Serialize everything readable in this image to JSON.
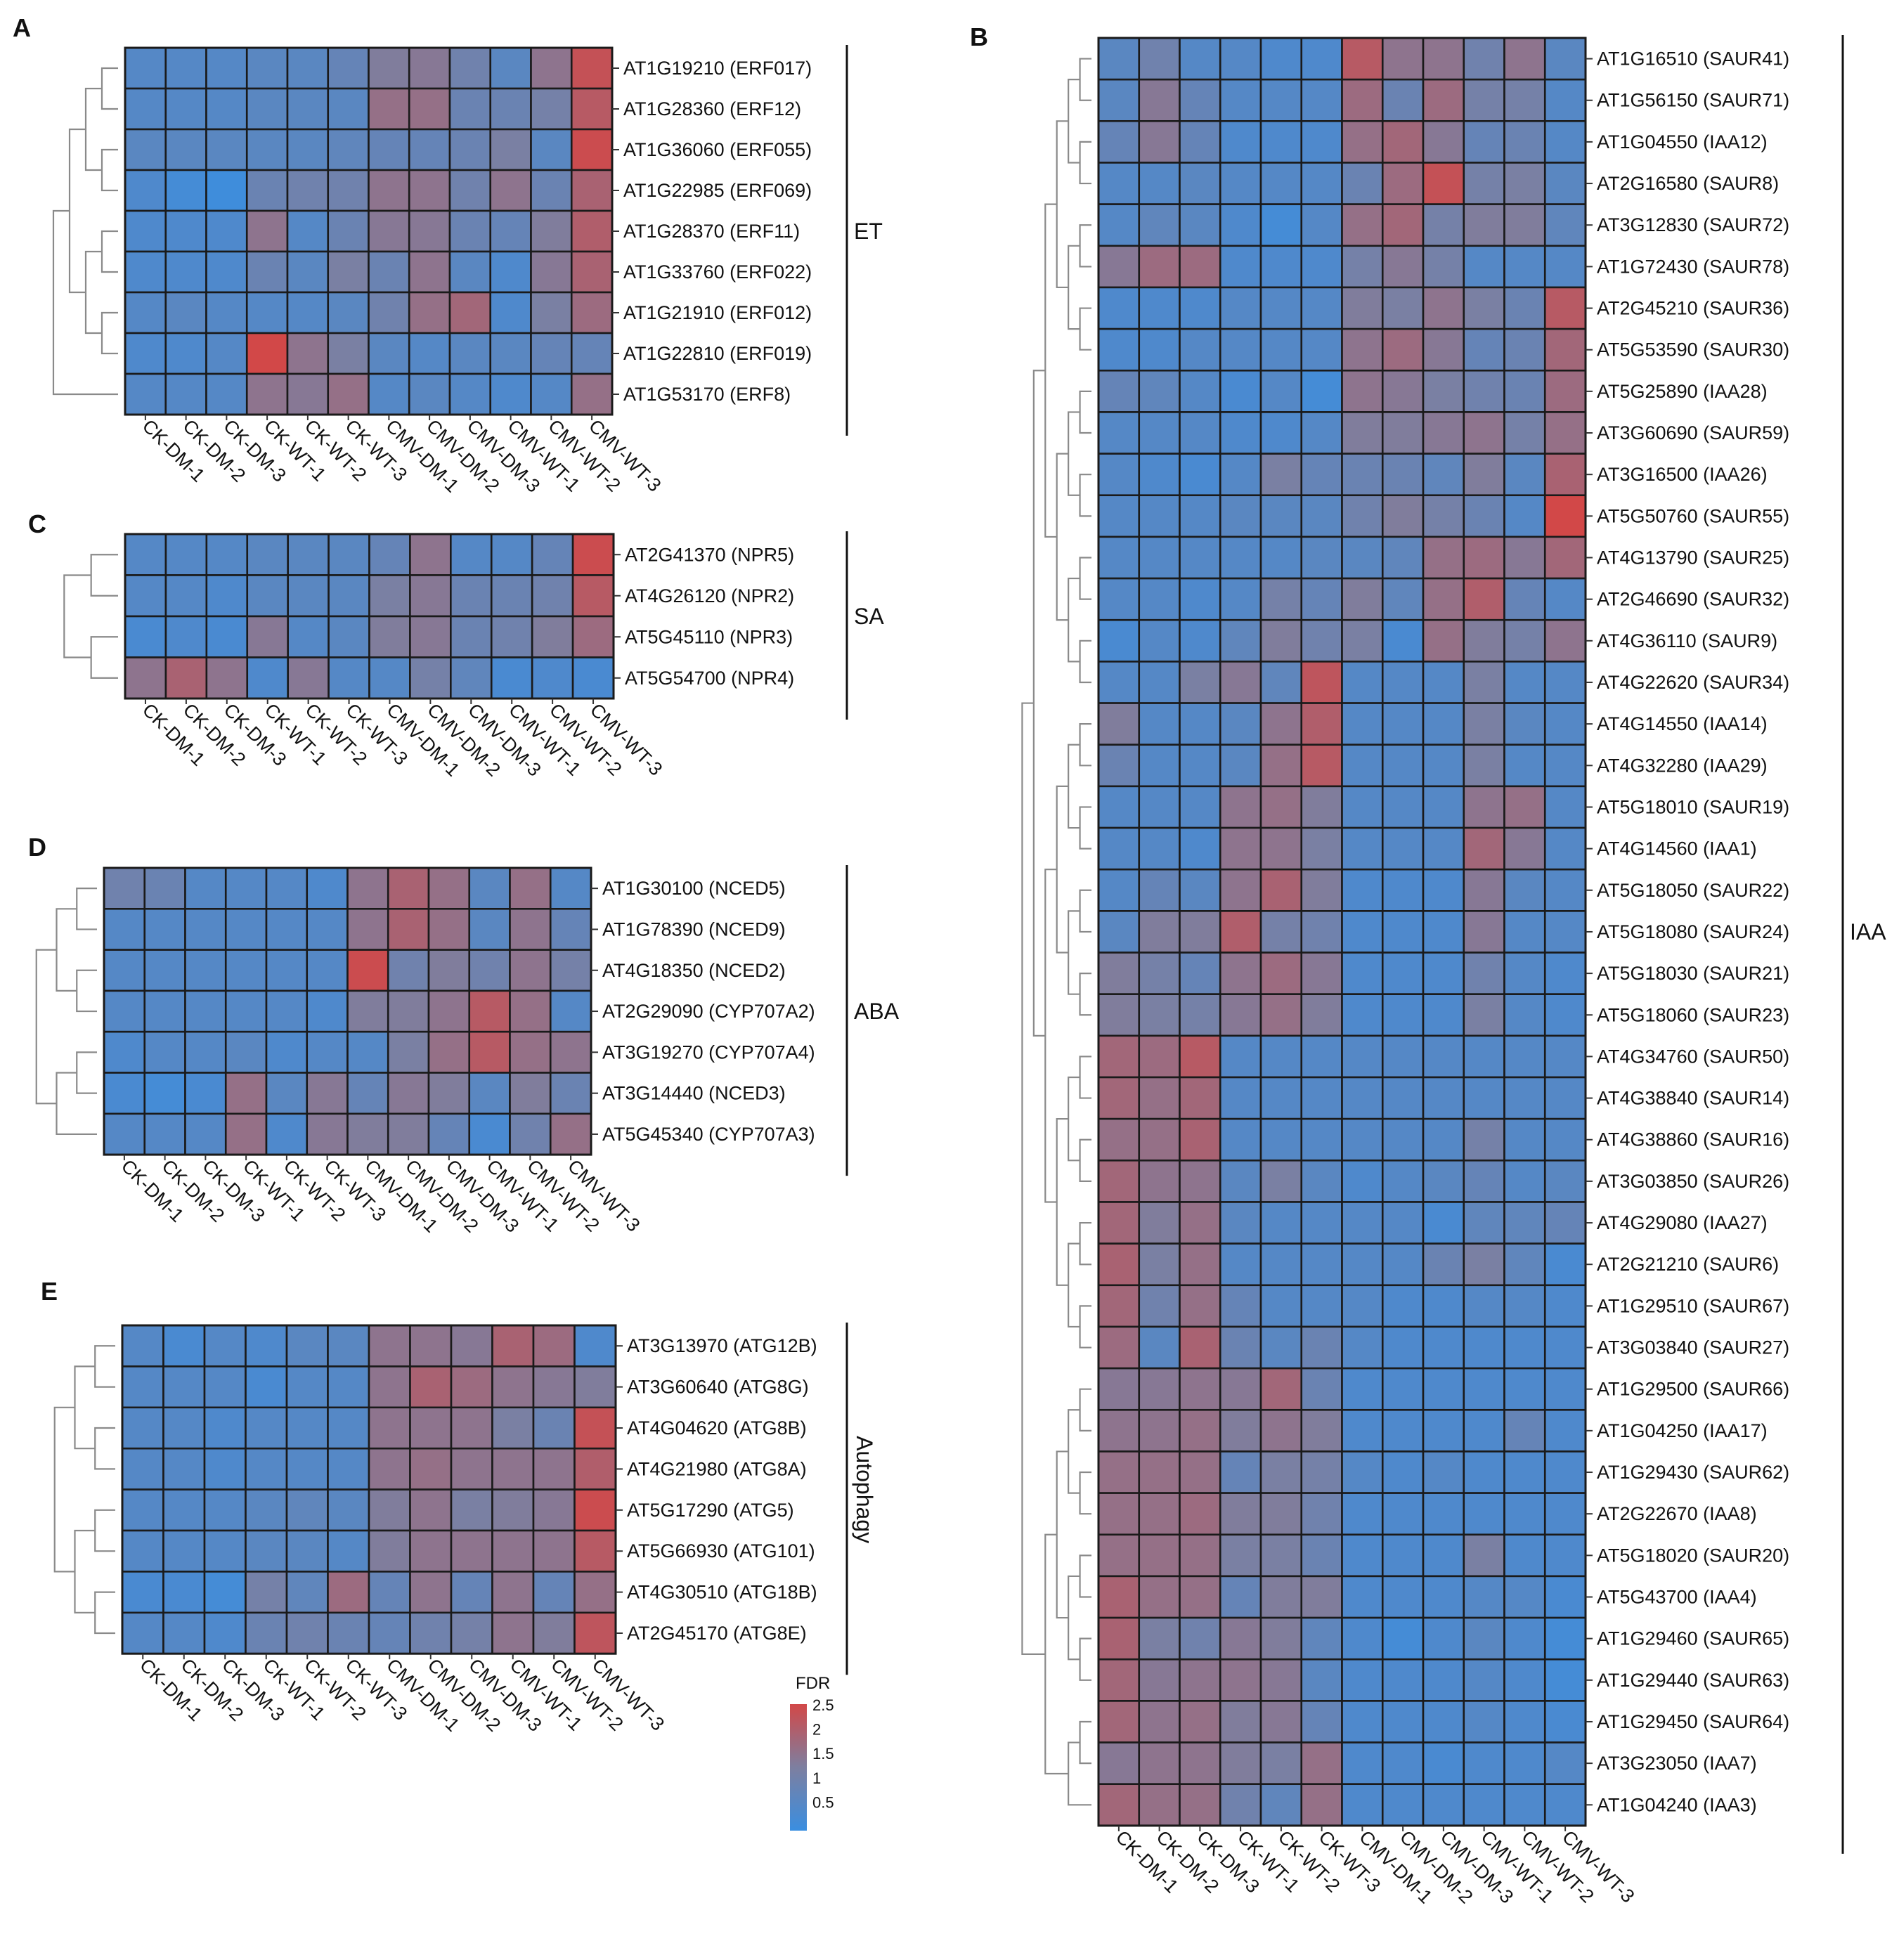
{
  "chart_data": [
    {
      "panel": "A",
      "type": "heatmap",
      "group_label": "ET",
      "columns": [
        "CK-DM-1",
        "CK-DM-2",
        "CK-DM-3",
        "CK-WT-1",
        "CK-WT-2",
        "CK-WT-3",
        "CMV-DM-1",
        "CMV-DM-2",
        "CMV-DM-3",
        "CMV-WT-1",
        "CMV-WT-2",
        "CMV-WT-3"
      ],
      "rows": [
        "AT1G19210 (ERF017)",
        "AT1G28360 (ERF12)",
        "AT1G36060 (ERF055)",
        "AT1G22985 (ERF069)",
        "AT1G28370 (ERF11)",
        "AT1G33760 (ERF022)",
        "AT1G21910 (ERF012)",
        "AT1G22810 (ERF019)",
        "AT1G53170 (ERF8)"
      ],
      "values": [
        [
          0.5,
          0.5,
          0.5,
          0.6,
          0.6,
          0.8,
          1.3,
          1.4,
          1.0,
          0.6,
          1.5,
          2.3
        ],
        [
          0.5,
          0.5,
          0.5,
          0.6,
          0.6,
          0.6,
          1.6,
          1.6,
          0.9,
          0.9,
          1.1,
          2.1
        ],
        [
          0.6,
          0.6,
          0.6,
          0.6,
          0.6,
          0.7,
          0.8,
          0.8,
          0.9,
          1.2,
          0.6,
          2.4
        ],
        [
          0.4,
          0.2,
          0.1,
          0.9,
          1.0,
          1.0,
          1.5,
          1.5,
          1.0,
          1.5,
          0.9,
          1.9
        ],
        [
          0.4,
          0.4,
          0.4,
          1.5,
          0.5,
          0.9,
          1.4,
          1.4,
          0.9,
          0.8,
          1.3,
          2.0
        ],
        [
          0.4,
          0.4,
          0.4,
          0.9,
          0.6,
          1.2,
          0.9,
          1.5,
          0.6,
          0.4,
          1.4,
          1.9
        ],
        [
          0.5,
          0.6,
          0.5,
          0.5,
          0.5,
          0.6,
          1.0,
          1.6,
          1.8,
          0.4,
          1.2,
          1.7
        ],
        [
          0.4,
          0.4,
          0.5,
          2.5,
          1.5,
          1.2,
          0.6,
          0.5,
          0.6,
          0.6,
          0.8,
          0.8
        ],
        [
          0.5,
          0.5,
          0.5,
          1.5,
          1.4,
          1.6,
          0.5,
          0.6,
          0.5,
          0.4,
          0.5,
          1.6
        ]
      ],
      "dendrogram": {
        "height": [
          0,
          0,
          0,
          0,
          0,
          0,
          0,
          0,
          0,
          1,
          1,
          2,
          0,
          0,
          3,
          0,
          4,
          3,
          5,
          4,
          5,
          1,
          1,
          1,
          2,
          2,
          6,
          7,
          6,
          7,
          8,
          8,
          8,
          8
        ],
        "scale": [
          0,
          0
        ]
      }
    },
    {
      "panel": "B",
      "type": "heatmap",
      "group_label": "IAA",
      "columns": [
        "CK-DM-1",
        "CK-DM-2",
        "CK-DM-3",
        "CK-WT-1",
        "CK-WT-2",
        "CK-WT-3",
        "CMV-DM-1",
        "CMV-DM-2",
        "CMV-DM-3",
        "CMV-WT-1",
        "CMV-WT-2",
        "CMV-WT-3"
      ],
      "rows": [
        "AT1G16510 (SAUR41)",
        "AT1G56150 (SAUR71)",
        "AT1G04550 (IAA12)",
        "AT2G16580 (SAUR8)",
        "AT3G12830 (SAUR72)",
        "AT1G72430 (SAUR78)",
        "AT2G45210 (SAUR36)",
        "AT5G53590 (SAUR30)",
        "AT5G25890 (IAA28)",
        "AT3G60690 (SAUR59)",
        "AT3G16500 (IAA26)",
        "AT5G50760 (SAUR55)",
        "AT4G13790 (SAUR25)",
        "AT2G46690 (SAUR32)",
        "AT4G36110 (SAUR9)",
        "AT4G22620 (SAUR34)",
        "AT4G14550 (IAA14)",
        "AT4G32280 (IAA29)",
        "AT5G18010 (SAUR19)",
        "AT4G14560 (IAA1)",
        "AT5G18050 (SAUR22)",
        "AT5G18080 (SAUR24)",
        "AT5G18030 (SAUR21)",
        "AT5G18060 (SAUR23)",
        "AT4G34760 (SAUR50)",
        "AT4G38840 (SAUR14)",
        "AT4G38860 (SAUR16)",
        "AT3G03850 (SAUR26)",
        "AT4G29080 (IAA27)",
        "AT2G21210 (SAUR6)",
        "AT1G29510 (SAUR67)",
        "AT3G03840 (SAUR27)",
        "AT1G29500 (SAUR66)",
        "AT1G04250 (IAA17)",
        "AT1G29430 (SAUR62)",
        "AT2G22670 (IAA8)",
        "AT5G18020 (SAUR20)",
        "AT5G43700 (IAA4)",
        "AT1G29460 (SAUR65)",
        "AT1G29440 (SAUR63)",
        "AT1G29450 (SAUR64)",
        "AT3G23050 (IAA7)",
        "AT1G04240 (IAA3)"
      ],
      "values": [
        [
          0.6,
          1.0,
          0.5,
          0.5,
          0.4,
          0.4,
          2.1,
          1.5,
          1.5,
          1.0,
          1.5,
          0.6
        ],
        [
          0.6,
          1.4,
          0.8,
          0.5,
          0.5,
          0.5,
          1.7,
          0.9,
          1.7,
          1.1,
          1.1,
          0.5
        ],
        [
          0.8,
          1.4,
          0.8,
          0.4,
          0.4,
          0.4,
          1.6,
          1.8,
          1.4,
          0.8,
          0.9,
          0.5
        ],
        [
          0.5,
          0.5,
          0.6,
          0.5,
          0.5,
          0.5,
          0.9,
          1.7,
          2.3,
          1.1,
          1.2,
          0.6
        ],
        [
          0.5,
          0.7,
          0.6,
          0.4,
          0.2,
          0.5,
          1.6,
          1.8,
          1.1,
          1.3,
          1.3,
          0.7
        ],
        [
          1.4,
          1.7,
          1.7,
          0.4,
          0.4,
          0.4,
          1.1,
          1.4,
          1.1,
          0.5,
          0.5,
          0.5
        ],
        [
          0.4,
          0.4,
          0.4,
          0.5,
          0.5,
          0.5,
          1.3,
          1.2,
          1.5,
          1.2,
          0.9,
          2.1
        ],
        [
          0.4,
          0.4,
          0.5,
          0.5,
          0.5,
          0.5,
          1.5,
          1.7,
          1.4,
          0.8,
          0.9,
          1.8
        ],
        [
          0.8,
          0.7,
          0.5,
          0.3,
          0.5,
          0.2,
          1.5,
          1.4,
          1.2,
          1.0,
          0.9,
          1.7
        ],
        [
          0.5,
          0.5,
          0.5,
          0.4,
          0.4,
          0.5,
          1.3,
          1.3,
          1.4,
          1.5,
          1.1,
          1.6
        ],
        [
          0.5,
          0.4,
          0.3,
          0.5,
          1.2,
          0.8,
          0.9,
          0.9,
          0.7,
          1.3,
          0.6,
          1.9
        ],
        [
          0.5,
          0.5,
          0.5,
          0.6,
          0.6,
          0.6,
          1.0,
          1.3,
          1.1,
          0.9,
          0.5,
          2.5
        ],
        [
          0.5,
          0.5,
          0.5,
          0.5,
          0.5,
          0.6,
          0.6,
          0.7,
          1.6,
          1.7,
          1.4,
          1.8
        ],
        [
          0.5,
          0.5,
          0.4,
          0.5,
          1.1,
          0.8,
          1.3,
          0.7,
          1.6,
          2.0,
          0.8,
          0.5
        ],
        [
          0.3,
          0.5,
          0.4,
          0.7,
          1.3,
          1.0,
          1.2,
          0.3,
          1.6,
          1.3,
          1.1,
          1.5
        ],
        [
          0.5,
          0.5,
          1.2,
          1.4,
          0.7,
          2.2,
          0.5,
          0.5,
          0.5,
          1.2,
          0.5,
          0.5
        ],
        [
          1.3,
          0.5,
          0.5,
          0.6,
          1.5,
          2.0,
          0.5,
          0.5,
          0.5,
          1.2,
          0.6,
          0.5
        ],
        [
          0.9,
          0.5,
          0.5,
          0.6,
          1.6,
          2.1,
          0.5,
          0.5,
          0.5,
          1.2,
          0.5,
          0.5
        ],
        [
          0.5,
          0.5,
          0.5,
          1.5,
          1.6,
          1.3,
          0.5,
          0.5,
          0.5,
          1.5,
          1.6,
          0.5
        ],
        [
          0.5,
          0.5,
          0.4,
          1.5,
          1.5,
          1.2,
          0.5,
          0.5,
          0.5,
          1.8,
          1.4,
          0.5
        ],
        [
          0.5,
          0.8,
          0.6,
          1.5,
          1.9,
          1.3,
          0.4,
          0.4,
          0.4,
          1.4,
          0.6,
          0.5
        ],
        [
          0.6,
          1.3,
          1.3,
          2.0,
          1.1,
          1.0,
          0.4,
          0.4,
          0.4,
          1.4,
          0.5,
          0.5
        ],
        [
          1.3,
          1.1,
          0.8,
          1.5,
          1.7,
          1.4,
          0.4,
          0.4,
          0.4,
          1.0,
          0.5,
          0.4
        ],
        [
          1.3,
          1.2,
          1.1,
          1.4,
          1.6,
          1.3,
          0.4,
          0.4,
          0.4,
          1.2,
          0.5,
          0.4
        ],
        [
          1.8,
          1.7,
          2.1,
          0.5,
          0.5,
          0.5,
          0.5,
          0.5,
          0.5,
          0.5,
          0.5,
          0.5
        ],
        [
          1.8,
          1.6,
          1.8,
          0.5,
          0.5,
          0.5,
          0.5,
          0.5,
          0.5,
          0.5,
          0.5,
          0.5
        ],
        [
          1.6,
          1.6,
          1.9,
          0.5,
          0.5,
          0.5,
          0.5,
          0.5,
          0.5,
          1.1,
          0.5,
          0.5
        ],
        [
          1.8,
          1.5,
          1.5,
          0.6,
          1.2,
          0.6,
          0.4,
          0.5,
          0.6,
          0.8,
          0.5,
          0.6
        ],
        [
          1.8,
          1.3,
          1.6,
          0.6,
          0.5,
          0.5,
          0.5,
          0.5,
          0.3,
          0.7,
          0.7,
          0.8
        ],
        [
          1.9,
          1.2,
          1.6,
          0.5,
          0.5,
          0.5,
          0.5,
          0.5,
          0.9,
          1.2,
          0.7,
          0.3
        ],
        [
          1.8,
          1.0,
          1.6,
          0.8,
          0.5,
          0.5,
          0.5,
          0.4,
          0.4,
          0.5,
          0.5,
          0.4
        ],
        [
          1.7,
          0.6,
          1.9,
          0.9,
          0.6,
          0.9,
          0.5,
          0.4,
          0.4,
          0.4,
          0.4,
          0.4
        ],
        [
          1.4,
          1.4,
          1.5,
          1.4,
          1.8,
          0.9,
          0.4,
          0.4,
          0.4,
          0.4,
          0.4,
          0.4
        ],
        [
          1.5,
          1.5,
          1.6,
          1.3,
          1.5,
          1.3,
          0.4,
          0.4,
          0.4,
          0.4,
          0.8,
          0.4
        ],
        [
          1.6,
          1.6,
          1.6,
          0.8,
          1.2,
          1.1,
          0.5,
          0.4,
          0.5,
          0.4,
          0.4,
          0.4
        ],
        [
          1.6,
          1.6,
          1.7,
          1.3,
          1.3,
          1.0,
          0.4,
          0.4,
          0.4,
          0.4,
          0.4,
          0.4
        ],
        [
          1.6,
          1.6,
          1.6,
          1.2,
          1.2,
          0.9,
          0.4,
          0.4,
          0.4,
          1.2,
          0.4,
          0.4
        ],
        [
          1.9,
          1.6,
          1.6,
          0.8,
          1.3,
          1.3,
          0.4,
          0.4,
          0.4,
          0.5,
          0.5,
          0.3
        ],
        [
          1.9,
          1.2,
          1.0,
          1.4,
          1.3,
          0.7,
          0.4,
          0.2,
          0.4,
          0.6,
          0.4,
          0.2
        ],
        [
          1.8,
          1.4,
          1.5,
          1.5,
          1.4,
          0.6,
          0.4,
          0.4,
          0.4,
          0.5,
          0.4,
          0.2
        ],
        [
          1.8,
          1.5,
          1.6,
          1.3,
          1.4,
          0.8,
          0.4,
          0.4,
          0.4,
          0.5,
          0.4,
          0.3
        ],
        [
          1.4,
          1.5,
          1.5,
          1.3,
          1.2,
          1.6,
          0.4,
          0.4,
          0.3,
          0.4,
          0.4,
          0.5
        ],
        [
          1.8,
          1.6,
          1.6,
          1.0,
          0.7,
          1.6,
          0.4,
          0.4,
          0.4,
          0.4,
          0.4,
          0.4
        ]
      ]
    },
    {
      "panel": "C",
      "type": "heatmap",
      "group_label": "SA",
      "columns": [
        "CK-DM-1",
        "CK-DM-2",
        "CK-DM-3",
        "CK-WT-1",
        "CK-WT-2",
        "CK-WT-3",
        "CMV-DM-1",
        "CMV-DM-2",
        "CMV-DM-3",
        "CMV-WT-1",
        "CMV-WT-2",
        "CMV-WT-3"
      ],
      "rows": [
        "AT2G41370 (NPR5)",
        "AT4G26120 (NPR2)",
        "AT5G45110 (NPR3)",
        "AT5G54700 (NPR4)"
      ],
      "values": [
        [
          0.5,
          0.5,
          0.5,
          0.6,
          0.6,
          0.6,
          0.8,
          1.5,
          0.5,
          0.5,
          0.8,
          2.4
        ],
        [
          0.5,
          0.5,
          0.4,
          0.6,
          0.6,
          0.6,
          1.2,
          1.4,
          0.9,
          0.9,
          1.0,
          2.1
        ],
        [
          0.3,
          0.4,
          0.3,
          1.4,
          0.5,
          0.6,
          1.3,
          1.4,
          0.9,
          1.0,
          1.3,
          1.7
        ],
        [
          1.5,
          1.9,
          1.5,
          0.4,
          1.4,
          0.5,
          0.5,
          1.1,
          0.7,
          0.3,
          0.4,
          0.3
        ]
      ]
    },
    {
      "panel": "D",
      "type": "heatmap",
      "group_label": "ABA",
      "columns": [
        "CK-DM-1",
        "CK-DM-2",
        "CK-DM-3",
        "CK-WT-1",
        "CK-WT-2",
        "CK-WT-3",
        "CMV-DM-1",
        "CMV-DM-2",
        "CMV-DM-3",
        "CMV-WT-1",
        "CMV-WT-2",
        "CMV-WT-3"
      ],
      "rows": [
        "AT1G30100 (NCED5)",
        "AT1G78390 (NCED9)",
        "AT4G18350 (NCED2)",
        "AT2G29090 (CYP707A2)",
        "AT3G19270 (CYP707A4)",
        "AT3G14440 (NCED3)",
        "AT5G45340 (CYP707A3)"
      ],
      "values": [
        [
          1.0,
          0.9,
          0.5,
          0.5,
          0.5,
          0.4,
          1.5,
          1.9,
          1.6,
          0.6,
          1.6,
          0.5
        ],
        [
          0.5,
          0.5,
          0.5,
          0.5,
          0.5,
          0.5,
          1.5,
          1.9,
          1.6,
          0.6,
          1.5,
          0.8
        ],
        [
          0.5,
          0.5,
          0.5,
          0.5,
          0.5,
          0.5,
          2.4,
          1.0,
          1.3,
          1.0,
          1.5,
          1.1
        ],
        [
          0.5,
          0.5,
          0.5,
          0.5,
          0.5,
          0.4,
          1.3,
          1.3,
          1.5,
          2.1,
          1.6,
          0.5
        ],
        [
          0.4,
          0.5,
          0.5,
          0.6,
          0.4,
          0.5,
          0.5,
          1.2,
          1.6,
          2.1,
          1.6,
          1.5
        ],
        [
          0.3,
          0.2,
          0.3,
          1.6,
          0.6,
          1.4,
          0.8,
          1.4,
          1.3,
          0.6,
          1.3,
          0.9
        ],
        [
          0.5,
          0.5,
          0.5,
          1.6,
          0.4,
          1.4,
          1.3,
          1.3,
          0.8,
          0.3,
          1.0,
          1.6
        ]
      ]
    },
    {
      "panel": "E",
      "type": "heatmap",
      "group_label": "Autophagy",
      "columns": [
        "CK-DM-1",
        "CK-DM-2",
        "CK-DM-3",
        "CK-WT-1",
        "CK-WT-2",
        "CK-WT-3",
        "CMV-DM-1",
        "CMV-DM-2",
        "CMV-DM-3",
        "CMV-WT-1",
        "CMV-WT-2",
        "CMV-WT-3"
      ],
      "rows": [
        "AT3G13970 (ATG12B)",
        "AT3G60640 (ATG8G)",
        "AT4G04620 (ATG8B)",
        "AT4G21980 (ATG8A)",
        "AT5G17290 (ATG5)",
        "AT5G66930 (ATG101)",
        "AT4G30510 (ATG18B)",
        "AT2G45170 (ATG8E)"
      ],
      "values": [
        [
          0.5,
          0.3,
          0.5,
          0.4,
          0.6,
          0.6,
          1.5,
          1.5,
          1.4,
          1.9,
          1.7,
          0.4
        ],
        [
          0.5,
          0.5,
          0.5,
          0.3,
          0.5,
          0.5,
          1.5,
          1.9,
          1.7,
          1.5,
          1.4,
          1.3
        ],
        [
          0.5,
          0.5,
          0.4,
          0.5,
          0.5,
          0.5,
          1.5,
          1.5,
          1.5,
          1.2,
          0.9,
          2.3
        ],
        [
          0.5,
          0.5,
          0.4,
          0.5,
          0.5,
          0.5,
          1.5,
          1.6,
          1.5,
          1.5,
          1.5,
          2.0
        ],
        [
          0.5,
          0.5,
          0.5,
          0.6,
          0.7,
          0.6,
          1.3,
          1.5,
          1.2,
          1.3,
          1.4,
          2.4
        ],
        [
          0.5,
          0.5,
          0.5,
          0.6,
          0.6,
          0.5,
          1.3,
          1.5,
          1.5,
          1.5,
          1.5,
          2.1
        ],
        [
          0.3,
          0.3,
          0.2,
          1.1,
          0.7,
          1.7,
          0.8,
          1.5,
          0.8,
          1.5,
          0.8,
          1.6
        ],
        [
          0.5,
          0.5,
          0.4,
          0.9,
          1.0,
          0.9,
          0.8,
          1.0,
          1.1,
          1.5,
          1.3,
          2.2
        ]
      ]
    }
  ],
  "legend": {
    "title": "FDR",
    "ticks": [
      "2.5",
      "2",
      "1.5",
      "1",
      "0.5"
    ],
    "low_color": "#3a8ee0",
    "mid_color": "#7d7fa0",
    "high_color": "#d24848"
  }
}
